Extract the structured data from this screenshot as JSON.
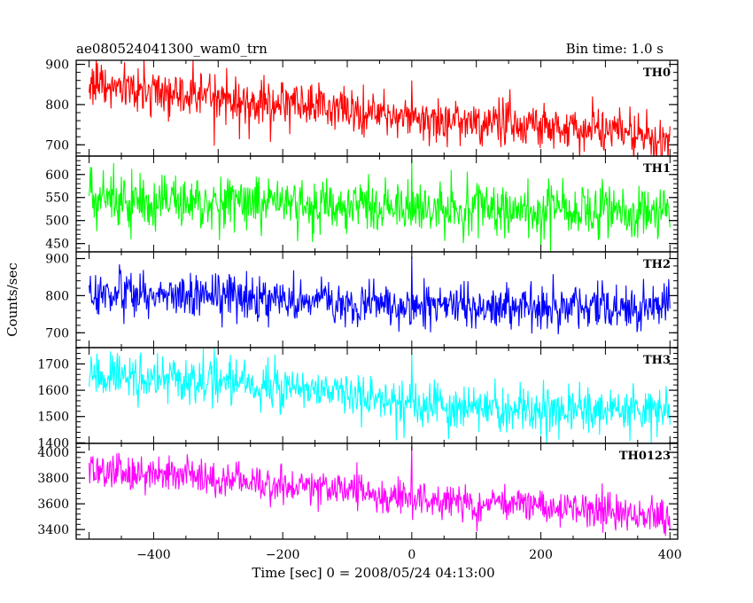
{
  "header": {
    "left_title": "ae080524041300_wam0_trn",
    "right_title": "Bin time: 1.0 s"
  },
  "chart_data": {
    "type": "line",
    "xlabel": "Time [sec] 0 = 2008/05/24 04:13:00",
    "ylabel": "Counts/sec",
    "xlim": [
      -520,
      412
    ],
    "xticks": [
      -400,
      -200,
      0,
      200,
      400
    ],
    "x_range": [
      -500,
      400
    ],
    "bin_time_s": 1.0,
    "panels": [
      {
        "name": "TH0",
        "color": "#ff0000",
        "ylim": [
          672,
          910
        ],
        "yticks": [
          700,
          800,
          900
        ],
        "trend_x": [
          -500,
          -400,
          -300,
          -200,
          -100,
          0,
          100,
          200,
          300,
          350,
          400
        ],
        "trend_y": [
          860,
          835,
          815,
          795,
          785,
          765,
          755,
          750,
          745,
          720,
          710
        ],
        "noise_sd": 30,
        "spikes": [
          {
            "x": 0,
            "y": 860
          }
        ]
      },
      {
        "name": "TH1",
        "color": "#00ff00",
        "ylim": [
          432,
          640
        ],
        "yticks": [
          450,
          500,
          550,
          600
        ],
        "trend_x": [
          -500,
          -300,
          -100,
          0,
          200,
          400
        ],
        "trend_y": [
          545,
          540,
          530,
          525,
          525,
          520
        ],
        "noise_sd": 28,
        "spikes": [
          {
            "x": 0,
            "y": 635
          }
        ]
      },
      {
        "name": "TH2",
        "color": "#0000ff",
        "ylim": [
          660,
          918
        ],
        "yticks": [
          700,
          800,
          900
        ],
        "trend_x": [
          -500,
          -300,
          -100,
          0,
          200,
          400
        ],
        "trend_y": [
          810,
          800,
          780,
          775,
          770,
          770
        ],
        "noise_sd": 30,
        "spikes": [
          {
            "x": 0,
            "y": 905
          }
        ]
      },
      {
        "name": "TH3",
        "color": "#00ffff",
        "ylim": [
          1398,
          1762
        ],
        "yticks": [
          1400,
          1500,
          1600,
          1700
        ],
        "trend_x": [
          -500,
          -300,
          -100,
          0,
          200,
          400
        ],
        "trend_y": [
          1660,
          1630,
          1580,
          1550,
          1530,
          1520
        ],
        "noise_sd": 42,
        "spikes": [
          {
            "x": 0,
            "y": 1740
          }
        ]
      },
      {
        "name": "TH0123",
        "color": "#ff00ff",
        "ylim": [
          3325,
          4070
        ],
        "yticks": [
          3400,
          3600,
          3800,
          4000
        ],
        "trend_x": [
          -500,
          -300,
          -100,
          0,
          200,
          400
        ],
        "trend_y": [
          3870,
          3800,
          3700,
          3640,
          3580,
          3500
        ],
        "noise_sd": 70,
        "spikes": [
          {
            "x": 0,
            "y": 4050
          }
        ]
      }
    ]
  }
}
